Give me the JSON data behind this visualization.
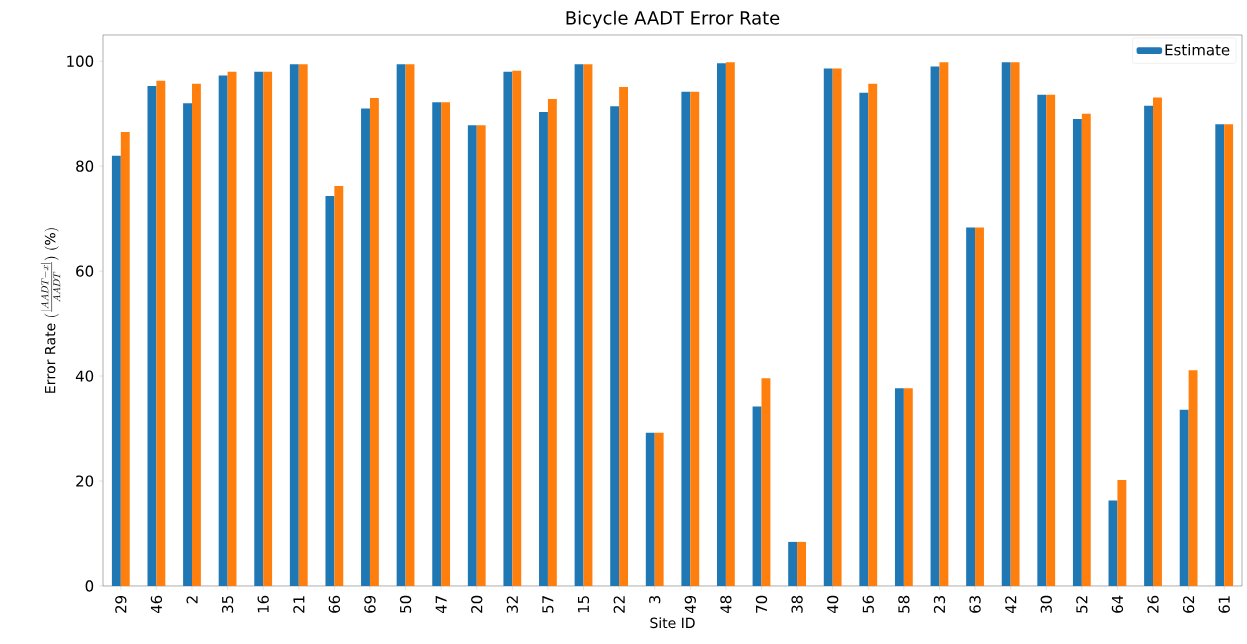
{
  "chart_data": {
    "type": "bar",
    "title": "Bicycle AADT Error Rate",
    "xlabel": "Site ID",
    "ylabel": "\\mathrm{Error\\ Rate\\ }(\\frac{|AADT-x|}{AADT})\\mathrm{\\ (\\%)}",
    "categories": [
      "29",
      "46",
      "2",
      "35",
      "16",
      "21",
      "66",
      "69",
      "50",
      "47",
      "20",
      "32",
      "57",
      "15",
      "22",
      "3",
      "49",
      "48",
      "70",
      "38",
      "40",
      "56",
      "58",
      "23",
      "63",
      "42",
      "30",
      "52",
      "64",
      "26",
      "62",
      "61"
    ],
    "series": [
      {
        "name": "Estimate",
        "color": "#1f77b4",
        "values": [
          82,
          95.3,
          92,
          97.3,
          98,
          99.4,
          74.3,
          91,
          99.4,
          92.2,
          87.8,
          98,
          90.3,
          99.4,
          91.4,
          29.2,
          94.2,
          99.6,
          34.2,
          8.4,
          98.6,
          94,
          37.7,
          99,
          68.3,
          99.8,
          93.6,
          89,
          16.3,
          91.5,
          33.6,
          88
        ]
      },
      {
        "color": "#ff7f0e",
        "values": [
          86.5,
          96.3,
          95.7,
          98,
          98,
          99.4,
          76.2,
          93,
          99.4,
          92.2,
          87.8,
          98.2,
          92.8,
          99.4,
          95.1,
          29.2,
          94.2,
          99.8,
          39.6,
          8.4,
          98.6,
          95.7,
          37.7,
          99.8,
          68.3,
          99.8,
          93.6,
          90,
          20.2,
          93.1,
          41.1,
          88
        ]
      }
    ],
    "ylim": [
      0,
      105
    ],
    "yticks": [
      0,
      20,
      40,
      60,
      80,
      100
    ],
    "legend": "top right"
  }
}
